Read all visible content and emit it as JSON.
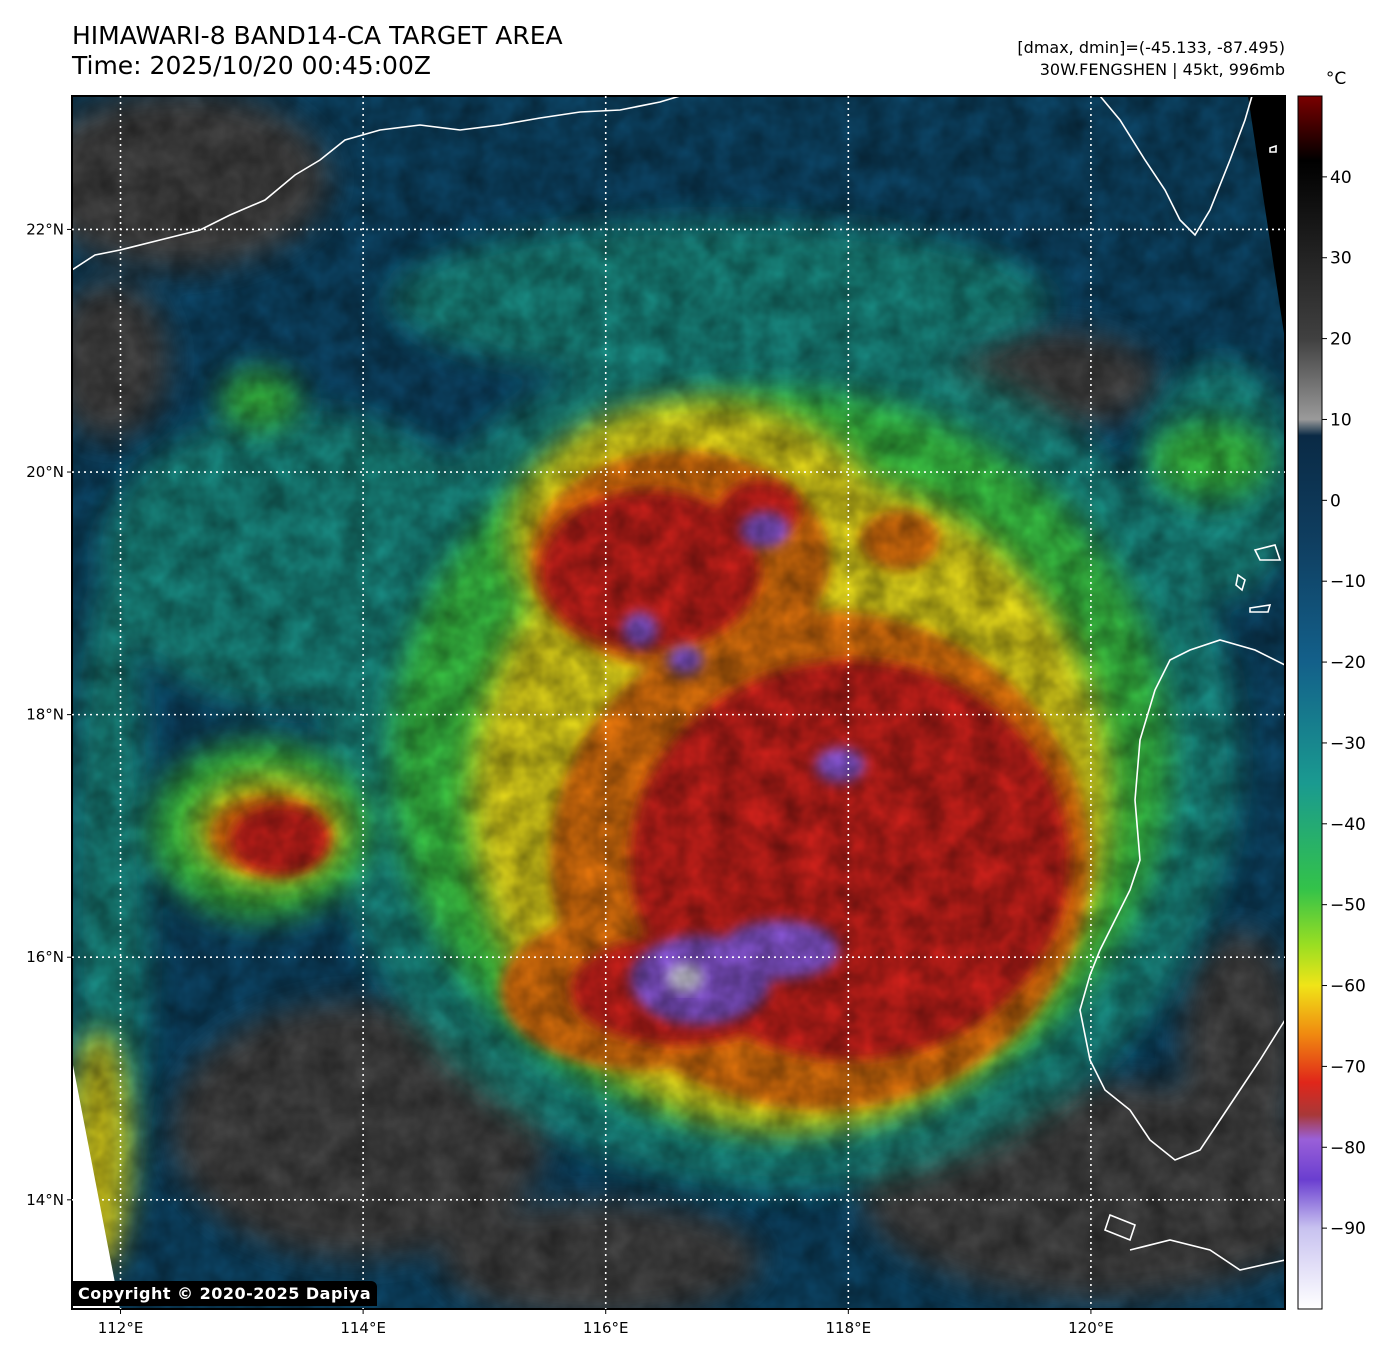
{
  "header": {
    "title_line1": "HIMAWARI-8 BAND14-CA TARGET AREA",
    "title_line2": "Time: 2025/10/20 00:45:00Z",
    "info_line1": "[dmax, dmin]=(-45.133, -87.495)",
    "info_line2": "30W.FENGSHEN | 45kt, 996mb"
  },
  "map": {
    "lon_range": [
      111.6,
      121.6
    ],
    "lat_range": [
      13.1,
      23.1
    ],
    "lon_ticks": [
      {
        "value": 112,
        "label": "112°E"
      },
      {
        "value": 114,
        "label": "114°E"
      },
      {
        "value": 116,
        "label": "116°E"
      },
      {
        "value": 118,
        "label": "118°E"
      },
      {
        "value": 120,
        "label": "120°E"
      }
    ],
    "lat_ticks": [
      {
        "value": 22,
        "label": "22°N"
      },
      {
        "value": 20,
        "label": "20°N"
      },
      {
        "value": 18,
        "label": "18°N"
      },
      {
        "value": 16,
        "label": "16°N"
      },
      {
        "value": 14,
        "label": "14°N"
      }
    ],
    "gridlines": "dotted-white",
    "colors": {
      "warm_land": "#4a4a4a",
      "clear_sea": "#0d4a6e",
      "low_cloud": "#1f9a8c",
      "mid_cloud": "#3ed14a",
      "high_cloud": "#f2e51e",
      "cold_top": "#ef7a10",
      "very_cold_top": "#d8201a",
      "coldest_top": "#8f5ae0",
      "overshoot": "#e8e6f8"
    }
  },
  "colorbar": {
    "unit": "°C",
    "range": [
      -100,
      50
    ],
    "ticks": [
      40,
      30,
      20,
      10,
      0,
      -10,
      -20,
      -30,
      -40,
      -50,
      -60,
      -70,
      -80,
      -90
    ],
    "tick_labels": [
      "40",
      "30",
      "20",
      "10",
      "0",
      "−10",
      "−20",
      "−30",
      "−40",
      "−50",
      "−60",
      "−70",
      "−80",
      "−90"
    ],
    "stops": [
      {
        "t": 50,
        "color": "#7a0000"
      },
      {
        "t": 42,
        "color": "#000000"
      },
      {
        "t": 20,
        "color": "#404040"
      },
      {
        "t": 10,
        "color": "#9a9a9a"
      },
      {
        "t": 8,
        "color": "#0a2a45"
      },
      {
        "t": -5,
        "color": "#0f3e60"
      },
      {
        "t": -20,
        "color": "#13608a"
      },
      {
        "t": -35,
        "color": "#1a9a90"
      },
      {
        "t": -48,
        "color": "#33c24a"
      },
      {
        "t": -55,
        "color": "#9ade22"
      },
      {
        "t": -60,
        "color": "#f0e418"
      },
      {
        "t": -66,
        "color": "#f08a10"
      },
      {
        "t": -72,
        "color": "#e0261a"
      },
      {
        "t": -76,
        "color": "#a83838"
      },
      {
        "t": -79,
        "color": "#9a60d8"
      },
      {
        "t": -84,
        "color": "#6a3ed0"
      },
      {
        "t": -90,
        "color": "#c8c2f0"
      },
      {
        "t": -100,
        "color": "#ffffff"
      }
    ]
  },
  "copyright": "Copyright © 2020-2025 Dapiya"
}
